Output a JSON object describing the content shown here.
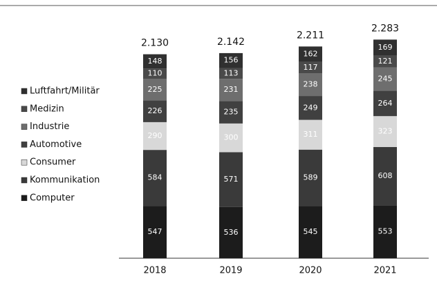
{
  "chart_data": {
    "type": "stacked-bar",
    "categories": [
      "2018",
      "2019",
      "2020",
      "2021"
    ],
    "series": [
      {
        "name": "Computer",
        "color": "#1c1c1c",
        "values": [
          547,
          536,
          545,
          553
        ]
      },
      {
        "name": "Kommunikation",
        "color": "#3a3a3a",
        "values": [
          584,
          571,
          589,
          608
        ]
      },
      {
        "name": "Consumer",
        "color": "#d8d8d8",
        "values": [
          290,
          300,
          311,
          323
        ]
      },
      {
        "name": "Automotive",
        "color": "#404040",
        "values": [
          226,
          235,
          249,
          264
        ]
      },
      {
        "name": "Industrie",
        "color": "#6e6e6e",
        "values": [
          225,
          231,
          238,
          245
        ]
      },
      {
        "name": "Medizin",
        "color": "#4a4a4a",
        "values": [
          110,
          113,
          117,
          121
        ]
      },
      {
        "name": "Luftfahrt/Militär",
        "color": "#303030",
        "values": [
          148,
          156,
          162,
          169
        ]
      }
    ],
    "totals": {
      "values": [
        2130,
        2142,
        2211,
        2283
      ],
      "value_labels": [
        "2.130",
        "2.142",
        "2.211",
        "2.283"
      ]
    },
    "ylim": [
      0,
      2300
    ]
  }
}
